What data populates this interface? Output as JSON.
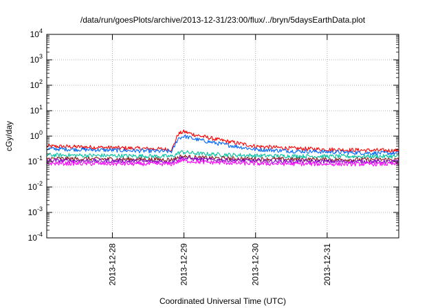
{
  "chart_data": {
    "type": "line",
    "title": "/data/run/goesPlots/archive/2013-12-31/23:00/flux/../bryn/5daysEarthData.plot",
    "xlabel": "Coordinated Universal Time (UTC)",
    "ylabel": "cGy/day",
    "y_scale": "log",
    "ylim": [
      0.0001,
      10000
    ],
    "y_ticks": [
      {
        "base": "10",
        "exp": "4",
        "value": 10000
      },
      {
        "base": "10",
        "exp": "3",
        "value": 1000
      },
      {
        "base": "10",
        "exp": "2",
        "value": 100
      },
      {
        "base": "10",
        "exp": "1",
        "value": 10
      },
      {
        "base": "10",
        "exp": "0",
        "value": 1
      },
      {
        "base": "10",
        "exp": "-1",
        "value": 0.1
      },
      {
        "base": "10",
        "exp": "-2",
        "value": 0.01
      },
      {
        "base": "10",
        "exp": "-3",
        "value": 0.001
      },
      {
        "base": "10",
        "exp": "-4",
        "value": 0.0001
      }
    ],
    "xlim": [
      "2013-12-27 02:00",
      "2014-01-01 00:00"
    ],
    "x_ticks": [
      "2013-12-28",
      "2013-12-29",
      "2013-12-30",
      "2013-12-31"
    ],
    "grid": true,
    "series": [
      {
        "color": "#ff0000",
        "points": [
          [
            "2013-12-27 02:00",
            0.4
          ],
          [
            "2013-12-27 12:00",
            0.38
          ],
          [
            "2013-12-28 00:00",
            0.35
          ],
          [
            "2013-12-28 12:00",
            0.32
          ],
          [
            "2013-12-28 20:00",
            0.3
          ],
          [
            "2013-12-28 22:00",
            1.2
          ],
          [
            "2013-12-29 00:00",
            1.5
          ],
          [
            "2013-12-29 04:00",
            1.1
          ],
          [
            "2013-12-29 12:00",
            0.7
          ],
          [
            "2013-12-30 00:00",
            0.4
          ],
          [
            "2013-12-30 12:00",
            0.33
          ],
          [
            "2013-12-31 00:00",
            0.3
          ],
          [
            "2013-12-31 12:00",
            0.28
          ],
          [
            "2014-01-01 00:00",
            0.27
          ]
        ]
      },
      {
        "color": "#0066ff",
        "points": [
          [
            "2013-12-27 02:00",
            0.32
          ],
          [
            "2013-12-27 12:00",
            0.3
          ],
          [
            "2013-12-28 00:00",
            0.28
          ],
          [
            "2013-12-28 12:00",
            0.26
          ],
          [
            "2013-12-28 20:00",
            0.25
          ],
          [
            "2013-12-28 22:00",
            0.8
          ],
          [
            "2013-12-29 00:00",
            1.0
          ],
          [
            "2013-12-29 04:00",
            0.75
          ],
          [
            "2013-12-29 12:00",
            0.5
          ],
          [
            "2013-12-30 00:00",
            0.3
          ],
          [
            "2013-12-30 12:00",
            0.26
          ],
          [
            "2013-12-31 00:00",
            0.24
          ],
          [
            "2013-12-31 12:00",
            0.22
          ],
          [
            "2014-01-01 00:00",
            0.21
          ]
        ]
      },
      {
        "color": "#00c0a0",
        "points": [
          [
            "2013-12-27 02:00",
            0.18
          ],
          [
            "2013-12-28 00:00",
            0.17
          ],
          [
            "2013-12-28 20:00",
            0.16
          ],
          [
            "2013-12-28 23:00",
            0.24
          ],
          [
            "2013-12-29 06:00",
            0.2
          ],
          [
            "2013-12-30 00:00",
            0.17
          ],
          [
            "2013-12-31 00:00",
            0.16
          ],
          [
            "2014-01-01 00:00",
            0.16
          ]
        ]
      },
      {
        "color": "#8b1a1a",
        "points": [
          [
            "2013-12-27 02:00",
            0.13
          ],
          [
            "2013-12-28 00:00",
            0.125
          ],
          [
            "2013-12-28 20:00",
            0.12
          ],
          [
            "2013-12-28 23:00",
            0.16
          ],
          [
            "2013-12-29 06:00",
            0.14
          ],
          [
            "2013-12-30 00:00",
            0.125
          ],
          [
            "2013-12-31 00:00",
            0.12
          ],
          [
            "2014-01-01 00:00",
            0.12
          ]
        ]
      },
      {
        "color": "#8800cc",
        "points": [
          [
            "2013-12-27 02:00",
            0.11
          ],
          [
            "2013-12-28 00:00",
            0.105
          ],
          [
            "2013-12-28 20:00",
            0.1
          ],
          [
            "2013-12-28 23:00",
            0.14
          ],
          [
            "2013-12-29 06:00",
            0.12
          ],
          [
            "2013-12-30 00:00",
            0.105
          ],
          [
            "2013-12-31 00:00",
            0.1
          ],
          [
            "2014-01-01 00:00",
            0.1
          ]
        ]
      },
      {
        "color": "#ff00ff",
        "points": [
          [
            "2013-12-27 02:00",
            0.085
          ],
          [
            "2013-12-28 00:00",
            0.082
          ],
          [
            "2013-12-28 20:00",
            0.08
          ],
          [
            "2013-12-28 23:00",
            0.11
          ],
          [
            "2013-12-29 06:00",
            0.095
          ],
          [
            "2013-12-30 00:00",
            0.083
          ],
          [
            "2013-12-31 00:00",
            0.08
          ],
          [
            "2014-01-01 00:00",
            0.08
          ]
        ]
      }
    ]
  }
}
